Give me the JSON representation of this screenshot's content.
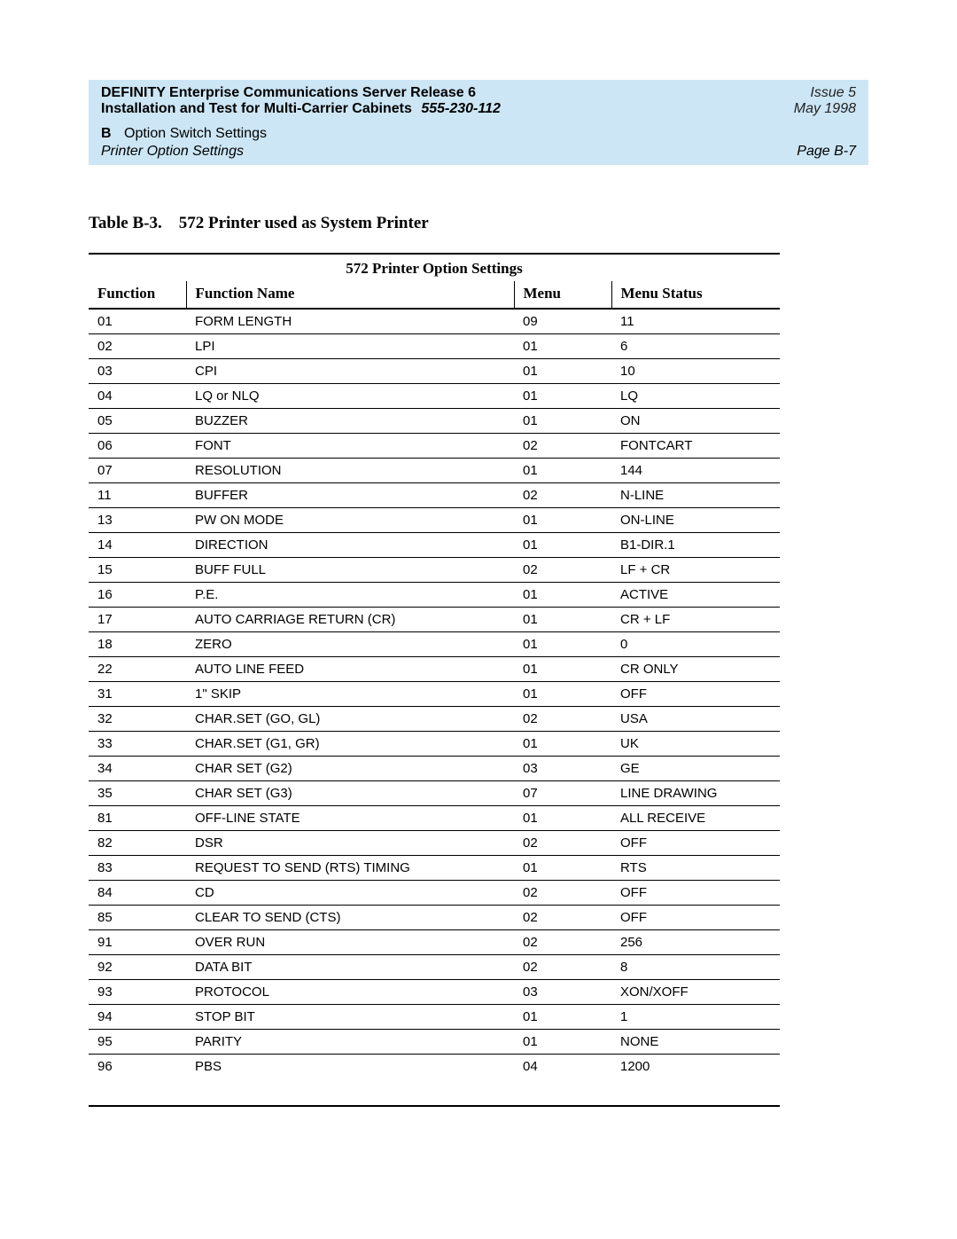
{
  "header": {
    "title_line1": "DEFINITY Enterprise Communications Server Release 6",
    "title_line2_a": "Installation and Test for Multi-Carrier Cabinets",
    "title_line2_b": "555-230-112",
    "issue": "Issue 5",
    "date": "May 1998",
    "appendix_letter": "B",
    "appendix_title": "Option Switch Settings",
    "section_title": "Printer Option Settings",
    "page_label": "Page B-7"
  },
  "table": {
    "caption_prefix": "Table B-3.",
    "caption_title": "572 Printer used as System Printer",
    "super_head": "572 Printer Option Settings",
    "columns": [
      "Function",
      "Function Name",
      "Menu",
      "Menu Status"
    ],
    "rows": [
      [
        "01",
        "FORM LENGTH",
        "09",
        "11"
      ],
      [
        "02",
        "LPI",
        "01",
        "6"
      ],
      [
        "03",
        "CPI",
        "01",
        "10"
      ],
      [
        "04",
        "LQ or NLQ",
        "01",
        "LQ"
      ],
      [
        "05",
        "BUZZER",
        "01",
        "ON"
      ],
      [
        "06",
        "FONT",
        "02",
        "FONTCART"
      ],
      [
        "07",
        "RESOLUTION",
        "01",
        "144"
      ],
      [
        "11",
        "BUFFER",
        "02",
        "N-LINE"
      ],
      [
        "13",
        "PW ON MODE",
        "01",
        "ON-LINE"
      ],
      [
        "14",
        "DIRECTION",
        "01",
        "B1-DIR.1"
      ],
      [
        "15",
        "BUFF FULL",
        "02",
        "LF + CR"
      ],
      [
        "16",
        "P.E.",
        "01",
        "ACTIVE"
      ],
      [
        "17",
        "AUTO CARRIAGE RETURN (CR)",
        "01",
        "CR + LF"
      ],
      [
        "18",
        "ZERO",
        "01",
        "0"
      ],
      [
        "22",
        "AUTO LINE FEED",
        "01",
        "CR ONLY"
      ],
      [
        "31",
        "1\" SKIP",
        "01",
        "OFF"
      ],
      [
        "32",
        "CHAR.SET (GO, GL)",
        "02",
        "USA"
      ],
      [
        "33",
        "CHAR.SET (G1, GR)",
        "01",
        "UK"
      ],
      [
        "34",
        "CHAR SET (G2)",
        "03",
        "GE"
      ],
      [
        "35",
        "CHAR SET (G3)",
        "07",
        "LINE DRAWING"
      ],
      [
        "81",
        "OFF-LINE STATE",
        "01",
        "ALL RECEIVE"
      ],
      [
        "82",
        "DSR",
        "02",
        "OFF"
      ],
      [
        "83",
        "REQUEST TO SEND (RTS) TIMING",
        "01",
        "RTS"
      ],
      [
        "84",
        "CD",
        "02",
        "OFF"
      ],
      [
        "85",
        "CLEAR TO SEND (CTS)",
        "02",
        "OFF"
      ],
      [
        "91",
        "OVER RUN",
        "02",
        "256"
      ],
      [
        "92",
        "DATA BIT",
        "02",
        "8"
      ],
      [
        "93",
        "PROTOCOL",
        "03",
        "XON/XOFF"
      ],
      [
        "94",
        "STOP BIT",
        "01",
        "1"
      ],
      [
        "95",
        "PARITY",
        "01",
        "NONE"
      ],
      [
        "96",
        "PBS",
        "04",
        "1200"
      ]
    ]
  },
  "style": {
    "header_bg": "#cce6f5",
    "rule_color": "#000000",
    "body_font": "Arial",
    "caption_font": "Times New Roman"
  }
}
